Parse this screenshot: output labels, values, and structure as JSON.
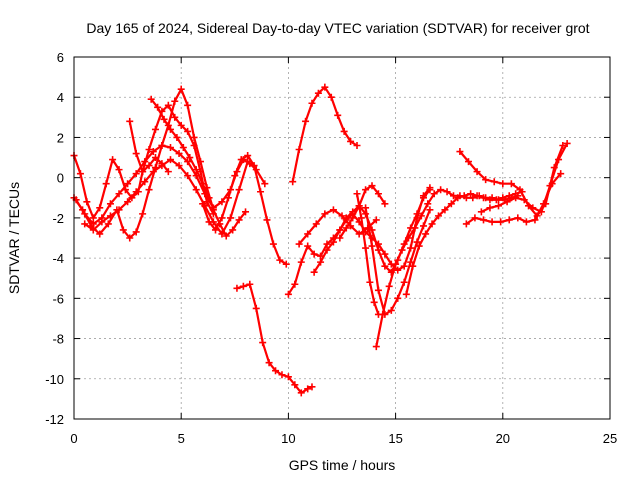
{
  "chart_data": {
    "type": "scatter",
    "title": "Day 165 of 2024, Sidereal Day-to-day VTEC variation (SDTVAR) for receiver grot",
    "xlabel": "GPS time / hours",
    "ylabel": "SDTVAR / TECUs",
    "xlim": [
      0,
      25
    ],
    "ylim": [
      -12,
      6
    ],
    "xticks": [
      0,
      5,
      10,
      15,
      20,
      25
    ],
    "yticks": [
      -12,
      -10,
      -8,
      -6,
      -4,
      -2,
      0,
      2,
      4,
      6
    ],
    "grid": true,
    "legend": "none",
    "marker": "+",
    "color": "#ff0000",
    "series": [
      {
        "x": [
          0.0,
          0.3,
          0.6,
          0.9,
          1.2,
          1.5,
          1.8,
          2.1,
          2.4,
          2.7,
          3.0,
          3.2,
          3.5,
          3.8,
          4.1,
          4.4,
          4.7,
          5.0,
          5.3,
          5.6,
          5.9,
          6.2,
          6.5
        ],
        "y": [
          1.1,
          0.2,
          -1.2,
          -2.0,
          -1.5,
          -0.3,
          0.9,
          0.4,
          -0.6,
          -1.0,
          -0.7,
          0.3,
          1.4,
          2.4,
          3.3,
          3.6,
          3.0,
          2.6,
          2.3,
          1.6,
          0.3,
          -1.2,
          -1.8
        ]
      },
      {
        "x": [
          0.0,
          0.4,
          0.8,
          1.2,
          1.6,
          2.0,
          2.3,
          2.6,
          2.9,
          3.2,
          3.5,
          3.8,
          4.1,
          4.4,
          4.7,
          5.0,
          5.3,
          5.6,
          5.9,
          6.2,
          6.5,
          6.8,
          7.1,
          7.4,
          7.7,
          8.0
        ],
        "y": [
          -1.0,
          -1.6,
          -2.4,
          -2.8,
          -2.3,
          -1.6,
          -2.6,
          -3.0,
          -2.7,
          -1.8,
          -0.6,
          0.5,
          1.6,
          2.6,
          3.8,
          4.4,
          3.6,
          2.0,
          0.8,
          -0.5,
          -1.6,
          -2.3,
          -2.9,
          -2.6,
          -2.1,
          -1.7
        ]
      },
      {
        "x": [
          0.1,
          0.5,
          0.9,
          1.3,
          1.7,
          2.1,
          2.5,
          2.9,
          3.3,
          3.7,
          4.1,
          4.5,
          4.9,
          5.3,
          5.7,
          6.1,
          6.5,
          6.9,
          7.3,
          7.6,
          7.9,
          8.2
        ],
        "y": [
          -1.1,
          -1.8,
          -2.3,
          -2.0,
          -1.3,
          -0.8,
          -0.3,
          0.2,
          0.8,
          1.3,
          1.6,
          1.5,
          1.2,
          0.8,
          0.1,
          -0.8,
          -1.5,
          -1.2,
          -0.6,
          0.3,
          0.9,
          0.7
        ]
      },
      {
        "x": [
          0.5,
          0.9,
          1.3,
          1.7,
          2.1,
          2.5,
          2.9,
          3.3,
          3.7,
          4.1,
          4.5,
          4.9,
          5.3,
          5.7,
          6.1,
          6.5,
          6.9,
          7.3,
          7.7,
          8.1,
          8.5,
          8.9
        ],
        "y": [
          -2.3,
          -2.6,
          -2.2,
          -1.9,
          -1.6,
          -1.2,
          -0.7,
          -0.2,
          0.3,
          0.6,
          0.9,
          0.6,
          0.1,
          -0.6,
          -1.4,
          -2.2,
          -2.8,
          -2.0,
          -0.6,
          0.8,
          0.4,
          -0.3
        ]
      },
      {
        "x": [
          2.6,
          2.9,
          3.2,
          3.5,
          3.8,
          4.1,
          4.4
        ],
        "y": [
          2.8,
          1.2,
          0.3,
          0.6,
          1.0,
          0.7,
          0.3
        ]
      },
      {
        "x": [
          3.6,
          3.9,
          4.2,
          4.5,
          4.8,
          5.1,
          5.4,
          5.7,
          6.0,
          6.3
        ],
        "y": [
          3.9,
          3.5,
          2.9,
          2.4,
          2.0,
          1.5,
          1.0,
          0.4,
          -0.3,
          -1.0
        ]
      },
      {
        "x": [
          6.0,
          6.3,
          6.6,
          6.9,
          7.2,
          7.5,
          7.8,
          8.1,
          8.4,
          8.7,
          9.0,
          9.3,
          9.6,
          9.9
        ],
        "y": [
          -1.3,
          -2.2,
          -2.6,
          -2.0,
          -1.0,
          0.1,
          0.9,
          1.1,
          0.6,
          -0.7,
          -2.1,
          -3.3,
          -4.1,
          -4.3
        ]
      },
      {
        "x": [
          7.6,
          7.9,
          8.2,
          8.5,
          8.8,
          9.1,
          9.4,
          9.7,
          10.0,
          10.3,
          10.6,
          10.9,
          11.1
        ],
        "y": [
          -5.5,
          -5.4,
          -5.3,
          -6.5,
          -8.2,
          -9.2,
          -9.6,
          -9.8,
          -9.9,
          -10.3,
          -10.7,
          -10.5,
          -10.4
        ]
      },
      {
        "x": [
          10.0,
          10.3,
          10.6,
          10.9,
          11.2,
          11.5,
          11.8,
          12.1,
          12.4,
          12.7,
          13.0,
          13.3,
          13.6,
          13.9,
          14.2,
          14.5,
          14.8,
          15.1,
          15.4,
          15.7,
          16.0,
          16.3,
          16.6
        ],
        "y": [
          -5.8,
          -5.3,
          -4.2,
          -3.4,
          -3.8,
          -3.9,
          -3.3,
          -3.0,
          -2.6,
          -2.1,
          -1.8,
          -2.2,
          -2.7,
          -3.0,
          -3.3,
          -3.8,
          -4.3,
          -4.6,
          -4.4,
          -3.5,
          -2.0,
          -0.9,
          -0.5
        ]
      },
      {
        "x": [
          10.2,
          10.5,
          10.8,
          11.1,
          11.4,
          11.7,
          12.0,
          12.3,
          12.6,
          12.9,
          13.2
        ],
        "y": [
          -0.2,
          1.4,
          2.8,
          3.7,
          4.2,
          4.5,
          4.0,
          3.1,
          2.3,
          1.8,
          1.6
        ]
      },
      {
        "x": [
          10.5,
          10.9,
          11.3,
          11.7,
          12.1,
          12.5,
          12.9,
          13.3,
          13.7,
          14.1
        ],
        "y": [
          -3.3,
          -2.8,
          -2.3,
          -1.8,
          -1.6,
          -1.9,
          -2.4,
          -2.8,
          -2.5,
          -2.1
        ]
      },
      {
        "x": [
          11.2,
          11.5,
          11.8,
          12.1,
          12.4,
          12.7,
          13.0,
          13.3,
          13.6,
          13.9,
          14.2,
          14.5,
          14.8,
          15.1,
          15.4,
          15.7,
          16.0,
          16.3,
          16.6
        ],
        "y": [
          -4.7,
          -4.2,
          -3.6,
          -3.2,
          -2.6,
          -2.0,
          -1.7,
          -1.4,
          -1.8,
          -2.6,
          -3.6,
          -4.4,
          -4.7,
          -4.1,
          -3.3,
          -2.5,
          -1.8,
          -1.0,
          -0.6
        ]
      },
      {
        "x": [
          12.4,
          12.7,
          13.0,
          13.3,
          13.6,
          13.9,
          14.2,
          14.5
        ],
        "y": [
          -3.0,
          -2.5,
          -2.0,
          -1.4,
          -0.6,
          -0.4,
          -0.8,
          -1.3
        ]
      },
      {
        "x": [
          13.2,
          13.4,
          13.6,
          13.8,
          14.0,
          14.2
        ],
        "y": [
          -0.8,
          -2.0,
          -3.5,
          -5.2,
          -6.2,
          -6.8
        ]
      },
      {
        "x": [
          13.6,
          13.9,
          14.2,
          14.5,
          14.8,
          15.1,
          15.4,
          15.7,
          16.0,
          16.3,
          16.6
        ],
        "y": [
          -1.5,
          -3.4,
          -5.6,
          -6.8,
          -6.6,
          -6.0,
          -5.2,
          -4.2,
          -3.2,
          -2.4,
          -1.6
        ]
      },
      {
        "x": [
          14.1,
          14.4,
          14.7,
          15.0,
          15.3,
          15.6,
          15.9,
          16.2,
          16.5,
          16.8,
          17.1,
          17.4,
          17.7,
          18.0,
          18.3,
          18.6,
          18.9,
          19.2,
          19.5,
          19.8,
          20.1,
          20.4,
          20.7
        ],
        "y": [
          -8.4,
          -6.8,
          -5.4,
          -4.3,
          -3.6,
          -3.0,
          -2.5,
          -1.9,
          -1.3,
          -0.8,
          -0.6,
          -0.7,
          -0.9,
          -0.9,
          -1.0,
          -1.0,
          -0.9,
          -1.0,
          -1.0,
          -1.1,
          -1.1,
          -1.0,
          -0.9
        ]
      },
      {
        "x": [
          15.5,
          15.8,
          16.1,
          16.4,
          16.7,
          17.0,
          17.3,
          17.6,
          17.9,
          18.2,
          18.5,
          18.8,
          19.1,
          19.4,
          19.7,
          20.0,
          20.3,
          20.6,
          20.9
        ],
        "y": [
          -5.8,
          -4.4,
          -3.4,
          -2.8,
          -2.3,
          -1.9,
          -1.6,
          -1.3,
          -1.0,
          -0.9,
          -0.8,
          -0.9,
          -1.0,
          -1.1,
          -1.1,
          -1.0,
          -0.9,
          -0.8,
          -0.7
        ]
      },
      {
        "x": [
          18.0,
          18.4,
          18.8,
          19.2,
          19.6,
          20.0,
          20.4,
          20.8,
          21.2,
          21.6,
          22.0,
          22.4,
          22.8
        ],
        "y": [
          1.3,
          0.8,
          0.3,
          -0.1,
          -0.2,
          -0.3,
          -0.3,
          -0.6,
          -1.4,
          -1.9,
          -1.3,
          0.5,
          1.6
        ]
      },
      {
        "x": [
          18.3,
          18.7,
          19.1,
          19.5,
          19.9,
          20.3,
          20.7,
          21.1,
          21.5,
          21.9,
          22.3,
          22.7
        ],
        "y": [
          -2.3,
          -2.0,
          -2.1,
          -2.2,
          -2.2,
          -2.1,
          -2.0,
          -2.2,
          -2.1,
          -1.3,
          -0.3,
          0.2
        ]
      },
      {
        "x": [
          19.0,
          19.4,
          19.8,
          20.2,
          20.6,
          21.0,
          21.4,
          21.8,
          22.2,
          22.6,
          23.0
        ],
        "y": [
          -1.7,
          -1.5,
          -1.4,
          -1.2,
          -1.0,
          -1.1,
          -1.5,
          -1.7,
          -0.4,
          0.9,
          1.7
        ]
      }
    ]
  }
}
